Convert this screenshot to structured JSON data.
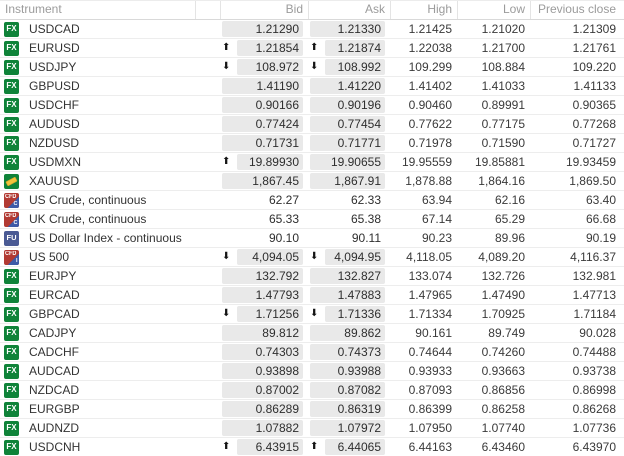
{
  "colors": {
    "fx_green": "#0f8339",
    "cfd_red": "#b23a33",
    "cfd_blue": "#3d5aa8",
    "fu_blue": "#4a5a94",
    "gold": "#f3c33c",
    "pill_bg": "#e9e9e9",
    "header_text": "#9b9b9b"
  },
  "glyphs": {
    "up": "⬆",
    "down": "⬇"
  },
  "badges": {
    "fx": {
      "label": "FX"
    },
    "gold": {
      "label": ""
    },
    "cfd-c": {
      "label": "CFD",
      "sub": "C"
    },
    "cfd-i": {
      "label": "CFD",
      "sub": "I"
    },
    "fu": {
      "label": "FU"
    }
  },
  "table": {
    "headers": {
      "instrument": "Instrument",
      "bid": "Bid",
      "ask": "Ask",
      "high": "High",
      "low": "Low",
      "prev_close": "Previous close"
    },
    "rows": [
      {
        "name": "USDCAD",
        "badge": "fx",
        "bid_dir": "",
        "bid": "1.21290",
        "ask_dir": "",
        "ask": "1.21330",
        "high": "1.21425",
        "low": "1.21020",
        "prev_close": "1.21309",
        "pill": true
      },
      {
        "name": "EURUSD",
        "badge": "fx",
        "bid_dir": "up",
        "bid": "1.21854",
        "ask_dir": "up",
        "ask": "1.21874",
        "high": "1.22038",
        "low": "1.21700",
        "prev_close": "1.21761",
        "pill": true
      },
      {
        "name": "USDJPY",
        "badge": "fx",
        "bid_dir": "down",
        "bid": "108.972",
        "ask_dir": "down",
        "ask": "108.992",
        "high": "109.299",
        "low": "108.884",
        "prev_close": "109.220",
        "pill": true
      },
      {
        "name": "GBPUSD",
        "badge": "fx",
        "bid_dir": "",
        "bid": "1.41190",
        "ask_dir": "",
        "ask": "1.41220",
        "high": "1.41402",
        "low": "1.41033",
        "prev_close": "1.41133",
        "pill": true
      },
      {
        "name": "USDCHF",
        "badge": "fx",
        "bid_dir": "",
        "bid": "0.90166",
        "ask_dir": "",
        "ask": "0.90196",
        "high": "0.90460",
        "low": "0.89991",
        "prev_close": "0.90365",
        "pill": true
      },
      {
        "name": "AUDUSD",
        "badge": "fx",
        "bid_dir": "",
        "bid": "0.77424",
        "ask_dir": "",
        "ask": "0.77454",
        "high": "0.77622",
        "low": "0.77175",
        "prev_close": "0.77268",
        "pill": true
      },
      {
        "name": "NZDUSD",
        "badge": "fx",
        "bid_dir": "",
        "bid": "0.71731",
        "ask_dir": "",
        "ask": "0.71771",
        "high": "0.71978",
        "low": "0.71590",
        "prev_close": "0.71727",
        "pill": true
      },
      {
        "name": "USDMXN",
        "badge": "fx",
        "bid_dir": "up",
        "bid": "19.89930",
        "ask_dir": "",
        "ask": "19.90655",
        "high": "19.95559",
        "low": "19.85881",
        "prev_close": "19.93459",
        "pill": true
      },
      {
        "name": "XAUUSD",
        "badge": "gold",
        "bid_dir": "",
        "bid": "1,867.45",
        "ask_dir": "",
        "ask": "1,867.91",
        "high": "1,878.88",
        "low": "1,864.16",
        "prev_close": "1,869.50",
        "pill": true
      },
      {
        "name": "US Crude, continuous",
        "badge": "cfd-c",
        "bid_dir": "",
        "bid": "62.27",
        "ask_dir": "",
        "ask": "62.33",
        "high": "63.94",
        "low": "62.16",
        "prev_close": "63.40",
        "pill": false
      },
      {
        "name": "UK Crude, continuous",
        "badge": "cfd-c",
        "bid_dir": "",
        "bid": "65.33",
        "ask_dir": "",
        "ask": "65.38",
        "high": "67.14",
        "low": "65.29",
        "prev_close": "66.68",
        "pill": false
      },
      {
        "name": "US Dollar Index - continuous",
        "badge": "fu",
        "bid_dir": "",
        "bid": "90.10",
        "ask_dir": "",
        "ask": "90.11",
        "high": "90.23",
        "low": "89.96",
        "prev_close": "90.19",
        "pill": false
      },
      {
        "name": "US 500",
        "badge": "cfd-i",
        "bid_dir": "down",
        "bid": "4,094.05",
        "ask_dir": "down",
        "ask": "4,094.95",
        "high": "4,118.05",
        "low": "4,089.20",
        "prev_close": "4,116.37",
        "pill": true
      },
      {
        "name": "EURJPY",
        "badge": "fx",
        "bid_dir": "",
        "bid": "132.792",
        "ask_dir": "",
        "ask": "132.827",
        "high": "133.074",
        "low": "132.726",
        "prev_close": "132.981",
        "pill": true
      },
      {
        "name": "EURCAD",
        "badge": "fx",
        "bid_dir": "",
        "bid": "1.47793",
        "ask_dir": "",
        "ask": "1.47883",
        "high": "1.47965",
        "low": "1.47490",
        "prev_close": "1.47713",
        "pill": true
      },
      {
        "name": "GBPCAD",
        "badge": "fx",
        "bid_dir": "down",
        "bid": "1.71256",
        "ask_dir": "down",
        "ask": "1.71336",
        "high": "1.71334",
        "low": "1.70925",
        "prev_close": "1.71184",
        "pill": true
      },
      {
        "name": "CADJPY",
        "badge": "fx",
        "bid_dir": "",
        "bid": "89.812",
        "ask_dir": "",
        "ask": "89.862",
        "high": "90.161",
        "low": "89.749",
        "prev_close": "90.028",
        "pill": true
      },
      {
        "name": "CADCHF",
        "badge": "fx",
        "bid_dir": "",
        "bid": "0.74303",
        "ask_dir": "",
        "ask": "0.74373",
        "high": "0.74644",
        "low": "0.74260",
        "prev_close": "0.74488",
        "pill": true
      },
      {
        "name": "AUDCAD",
        "badge": "fx",
        "bid_dir": "",
        "bid": "0.93898",
        "ask_dir": "",
        "ask": "0.93988",
        "high": "0.93933",
        "low": "0.93663",
        "prev_close": "0.93738",
        "pill": true
      },
      {
        "name": "NZDCAD",
        "badge": "fx",
        "bid_dir": "",
        "bid": "0.87002",
        "ask_dir": "",
        "ask": "0.87082",
        "high": "0.87093",
        "low": "0.86856",
        "prev_close": "0.86998",
        "pill": true
      },
      {
        "name": "EURGBP",
        "badge": "fx",
        "bid_dir": "",
        "bid": "0.86289",
        "ask_dir": "",
        "ask": "0.86319",
        "high": "0.86399",
        "low": "0.86258",
        "prev_close": "0.86268",
        "pill": true
      },
      {
        "name": "AUDNZD",
        "badge": "fx",
        "bid_dir": "",
        "bid": "1.07882",
        "ask_dir": "",
        "ask": "1.07972",
        "high": "1.07950",
        "low": "1.07740",
        "prev_close": "1.07736",
        "pill": true
      },
      {
        "name": "USDCNH",
        "badge": "fx",
        "bid_dir": "up",
        "bid": "6.43915",
        "ask_dir": "up",
        "ask": "6.44065",
        "high": "6.44163",
        "low": "6.43460",
        "prev_close": "6.43970",
        "pill": true
      }
    ]
  }
}
